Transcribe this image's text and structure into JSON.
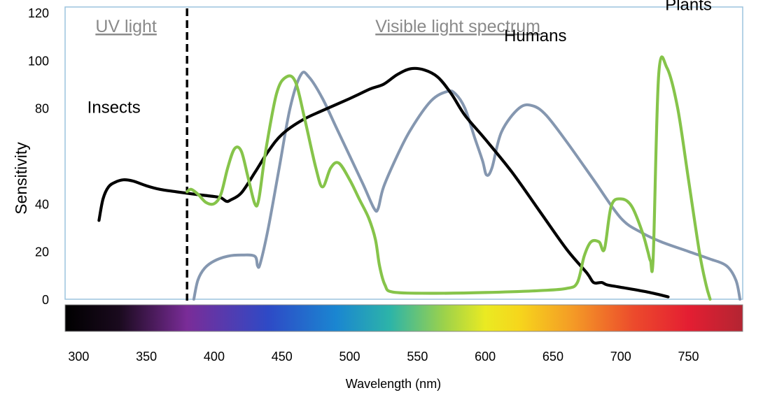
{
  "chart_data": {
    "type": "line",
    "ylabel": "Sensitivity",
    "xlabel": "Wavelength (nm)",
    "xlim": [
      290,
      790
    ],
    "ylim": [
      0,
      120
    ],
    "x_ticks": [
      "300",
      "350",
      "400",
      "450",
      "500",
      "550",
      "600",
      "650",
      "700",
      "750"
    ],
    "y_ticks": [
      "0",
      "20",
      "40",
      "80",
      "100",
      "120"
    ],
    "regions": [
      {
        "label": "UV light",
        "from": 290,
        "to": 380,
        "underline": true
      },
      {
        "label": "Visible light spectrum",
        "from": 380,
        "to": 790,
        "underline": true
      }
    ],
    "divider_x": 380,
    "series": [
      {
        "name": "Insects",
        "label": "Insects",
        "color": "#000000",
        "label_at": [
          326,
          78
        ],
        "points": [
          [
            315,
            33
          ],
          [
            318,
            42
          ],
          [
            322,
            47
          ],
          [
            327,
            49
          ],
          [
            333,
            50
          ],
          [
            340,
            49.5
          ],
          [
            350,
            47.5
          ],
          [
            360,
            46
          ],
          [
            372,
            45
          ],
          [
            385,
            44
          ],
          [
            400,
            43
          ],
          [
            405,
            42.5
          ],
          [
            409,
            41
          ],
          [
            412,
            41.5
          ],
          [
            420,
            44.5
          ],
          [
            430,
            53
          ],
          [
            440,
            62
          ],
          [
            450,
            69
          ],
          [
            465,
            75
          ],
          [
            480,
            79
          ],
          [
            500,
            84
          ],
          [
            515,
            88
          ],
          [
            525,
            90
          ],
          [
            535,
            94
          ],
          [
            545,
            96.5
          ],
          [
            555,
            96
          ],
          [
            565,
            93
          ],
          [
            575,
            86
          ],
          [
            585,
            77
          ],
          [
            600,
            67
          ],
          [
            620,
            53
          ],
          [
            640,
            37
          ],
          [
            660,
            21
          ],
          [
            675,
            11
          ],
          [
            680,
            7
          ],
          [
            686,
            7
          ],
          [
            690,
            6
          ],
          [
            700,
            5
          ],
          [
            720,
            3
          ],
          [
            735,
            1
          ]
        ]
      },
      {
        "name": "Humans",
        "label": "Humans",
        "color": "#8597b0",
        "label_at": [
          637,
          108
        ],
        "points": [
          [
            385,
            0
          ],
          [
            388,
            8
          ],
          [
            393,
            13
          ],
          [
            400,
            16
          ],
          [
            410,
            18
          ],
          [
            420,
            18.5
          ],
          [
            430,
            18
          ],
          [
            432,
            14
          ],
          [
            434,
            15
          ],
          [
            440,
            30
          ],
          [
            448,
            55
          ],
          [
            456,
            80
          ],
          [
            464,
            94
          ],
          [
            470,
            93
          ],
          [
            480,
            84
          ],
          [
            490,
            72
          ],
          [
            500,
            60
          ],
          [
            510,
            48
          ],
          [
            518,
            38
          ],
          [
            521,
            38
          ],
          [
            525,
            47
          ],
          [
            535,
            60
          ],
          [
            545,
            71
          ],
          [
            560,
            83
          ],
          [
            572,
            87
          ],
          [
            578,
            86
          ],
          [
            585,
            80
          ],
          [
            592,
            68
          ],
          [
            598,
            58
          ],
          [
            601,
            52
          ],
          [
            605,
            55
          ],
          [
            612,
            70
          ],
          [
            625,
            80
          ],
          [
            635,
            81
          ],
          [
            645,
            77
          ],
          [
            660,
            66
          ],
          [
            680,
            50
          ],
          [
            700,
            34
          ],
          [
            715,
            28
          ],
          [
            730,
            24
          ],
          [
            750,
            20
          ],
          [
            765,
            17
          ],
          [
            778,
            14
          ],
          [
            785,
            8
          ],
          [
            788,
            0
          ]
        ]
      },
      {
        "name": "Plants",
        "label": "Plants",
        "color": "#86c44a",
        "label_at": [
          750,
          121
        ],
        "points": [
          [
            380,
            45
          ],
          [
            383,
            46
          ],
          [
            388,
            44
          ],
          [
            394,
            40.5
          ],
          [
            400,
            40
          ],
          [
            405,
            44
          ],
          [
            410,
            55
          ],
          [
            415,
            63
          ],
          [
            420,
            62
          ],
          [
            425,
            51
          ],
          [
            430,
            40
          ],
          [
            433,
            42
          ],
          [
            438,
            62
          ],
          [
            446,
            86
          ],
          [
            453,
            93
          ],
          [
            460,
            91
          ],
          [
            467,
            75
          ],
          [
            475,
            55
          ],
          [
            480,
            47
          ],
          [
            486,
            55
          ],
          [
            492,
            57
          ],
          [
            500,
            50
          ],
          [
            507,
            42
          ],
          [
            514,
            34
          ],
          [
            519,
            25
          ],
          [
            522,
            14
          ],
          [
            526,
            6
          ],
          [
            532,
            3
          ],
          [
            560,
            2.5
          ],
          [
            600,
            2.8
          ],
          [
            640,
            3.6
          ],
          [
            660,
            4.5
          ],
          [
            668,
            7
          ],
          [
            673,
            18
          ],
          [
            678,
            24
          ],
          [
            684,
            24
          ],
          [
            688,
            21
          ],
          [
            693,
            39
          ],
          [
            700,
            42
          ],
          [
            708,
            39
          ],
          [
            716,
            28
          ],
          [
            720,
            20
          ],
          [
            722,
            16
          ],
          [
            724,
            18
          ],
          [
            728,
            94
          ],
          [
            734,
            97
          ],
          [
            742,
            80
          ],
          [
            750,
            50
          ],
          [
            758,
            20
          ],
          [
            763,
            6
          ],
          [
            766,
            0
          ]
        ]
      }
    ]
  }
}
